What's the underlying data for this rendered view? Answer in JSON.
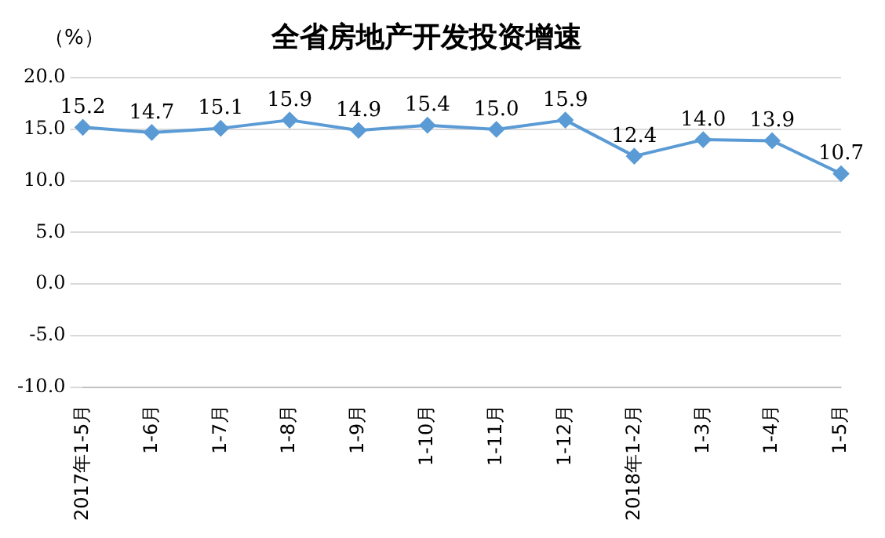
{
  "chart_data": {
    "type": "line",
    "title": "全省房地产开发投资增速",
    "ylabel": "（%）",
    "categories": [
      "2017年1-5月",
      "1-6月",
      "1-7月",
      "1-8月",
      "1-9月",
      "1-10月",
      "1-11月",
      "1-12月",
      "2018年1-2月",
      "1-3月",
      "1-4月",
      "1-5月"
    ],
    "series": [
      {
        "color": "#5b9bd5",
        "values": [
          15.2,
          14.7,
          15.1,
          15.9,
          14.9,
          15.4,
          15.0,
          15.9,
          12.4,
          14.0,
          13.9,
          10.7
        ],
        "value_labels": [
          "15.2",
          "14.7",
          "15.1",
          "15.9",
          "14.9",
          "15.4",
          "15.0",
          "15.9",
          "12.4",
          "14.0",
          "13.9",
          "10.7"
        ]
      }
    ],
    "ylim": [
      -10,
      20
    ],
    "yticks": [
      {
        "value": -10,
        "label": "-10.0"
      },
      {
        "value": -5,
        "label": "-5.0"
      },
      {
        "value": 0,
        "label": "0.0"
      },
      {
        "value": 5,
        "label": "5.0"
      },
      {
        "value": 10,
        "label": "10.0"
      },
      {
        "value": 15,
        "label": "15.0"
      },
      {
        "value": 20,
        "label": "20.0"
      }
    ],
    "grid": "y",
    "legend": false,
    "marker": "diamond",
    "line_style": "solid"
  }
}
